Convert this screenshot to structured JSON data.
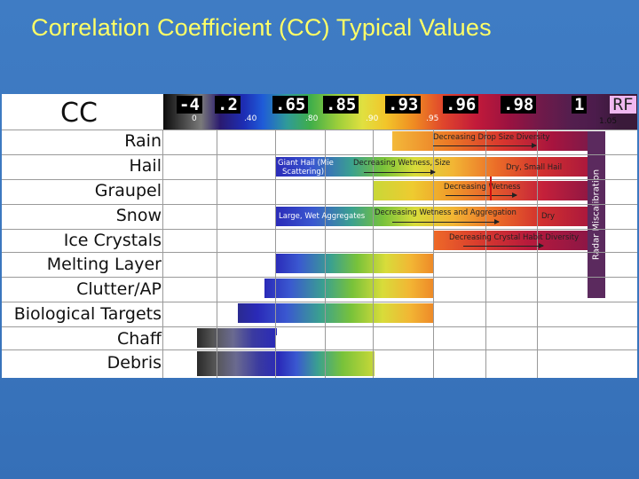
{
  "title": "Correlation Coefficient (CC) Typical Values",
  "table_header": "CC",
  "scale": {
    "boxes": [
      "-4",
      ".2",
      ".65",
      ".85",
      ".93",
      ".96",
      ".98",
      "1"
    ],
    "ticks": [
      "0",
      ".40",
      ".80",
      ".90",
      ".95"
    ],
    "rf_label": "RF",
    "end_tick": "1.05"
  },
  "categories": [
    "Rain",
    "Hail",
    "Graupel",
    "Snow",
    "Ice Crystals",
    "Melting Layer",
    "Clutter/AP",
    "Biological Targets",
    "Chaff",
    "Debris"
  ],
  "annotations": {
    "rain_drop": "Decreasing Drop Size Diversity",
    "hail_giant": "Giant Hail (Mie",
    "hail_giant2": "Scattering)",
    "hail_wetness": "Decreasing Wetness, Size",
    "hail_dry": "Dry, Small Hail",
    "graupel_wetness": "Decreasing Wetness",
    "snow_large": "Large, Wet Aggregates",
    "snow_wetness": "Decreasing Wetness and Aggregation",
    "snow_dry": "Dry",
    "ice_habit": "Decreasing Crystal Habit Diversity",
    "radar_miscal": "Radar Miscalibration"
  },
  "colors": {
    "background": "#3a76be",
    "title": "#ffff66",
    "rf_box": "#f0b8f0",
    "miscalibration": "#5b2a5e"
  }
}
